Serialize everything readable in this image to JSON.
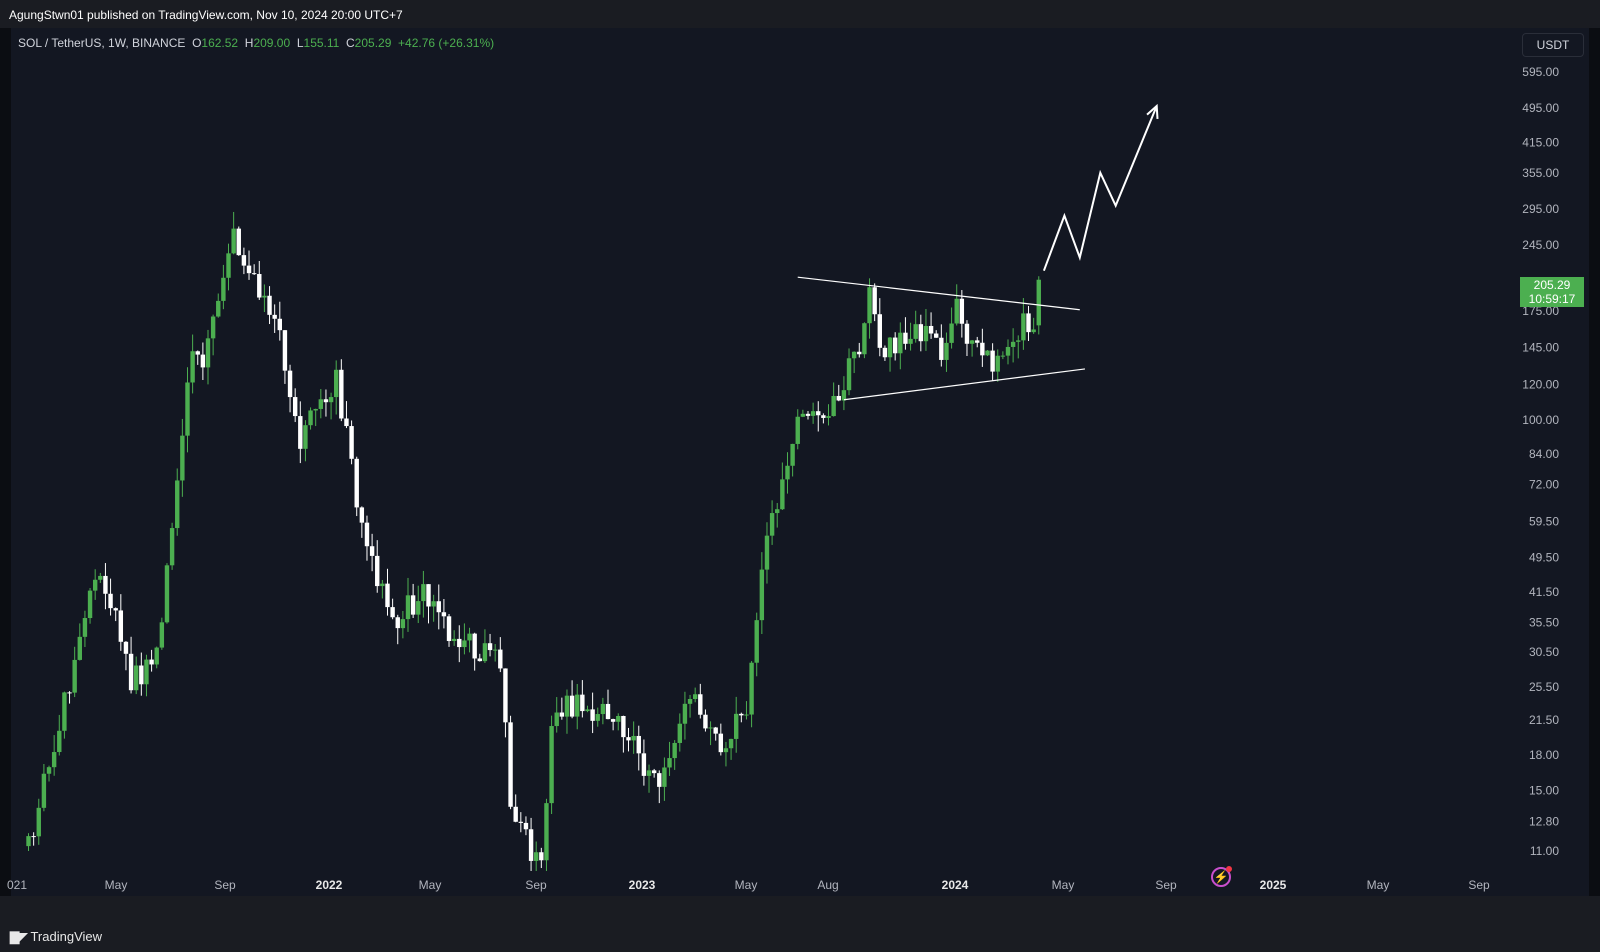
{
  "header": {
    "published": "AgungStwn01 published on TradingView.com, Nov 10, 2024 20:00 UTC+7"
  },
  "legend": {
    "symbol": "SOL / TetherUS, 1W, BINANCE",
    "o_label": "O",
    "o": "162.52",
    "h_label": "H",
    "h": "209.00",
    "l_label": "L",
    "l": "155.11",
    "c_label": "C",
    "c": "205.29",
    "change": "+42.76 (+26.31%)"
  },
  "currency_button": "USDT",
  "last_price": {
    "price": "205.29",
    "countdown": "10:59:17"
  },
  "brand": {
    "name": "TradingView"
  },
  "icons": {
    "brand_logo": "tradingview-logo-icon",
    "alert": "lightning-alert-icon"
  },
  "colors": {
    "up": "#4caf50",
    "down": "#ffffff",
    "background": "#131722",
    "annotation": "#ffffff"
  },
  "chart_data": {
    "type": "candlestick",
    "interval": "1W",
    "y_scale": "log",
    "y_ticks": [
      "595.00",
      "495.00",
      "415.00",
      "355.00",
      "295.00",
      "245.00",
      "175.00",
      "145.00",
      "120.00",
      "100.00",
      "84.00",
      "72.00",
      "59.50",
      "49.50",
      "41.50",
      "35.50",
      "30.50",
      "25.50",
      "21.50",
      "18.00",
      "15.00",
      "12.80",
      "11.00"
    ],
    "x_ticks": [
      "021",
      "May",
      "Sep",
      "2022",
      "May",
      "Sep",
      "2023",
      "May",
      "Aug",
      "2024",
      "May",
      "Sep",
      "2025",
      "May",
      "Sep"
    ],
    "anchors": [
      {
        "x": "2021-02-01",
        "close": 11.5
      },
      {
        "x": "2021-03-15",
        "close": 21
      },
      {
        "x": "2021-05-10",
        "close": 48
      },
      {
        "x": "2021-06-21",
        "close": 26
      },
      {
        "x": "2021-07-26",
        "close": 30
      },
      {
        "x": "2021-08-23",
        "close": 72
      },
      {
        "x": "2021-09-13",
        "close": 150
      },
      {
        "x": "2021-09-27",
        "close": 130
      },
      {
        "x": "2021-11-08",
        "close": 250
      },
      {
        "x": "2021-12-20",
        "close": 180
      },
      {
        "x": "2022-01-10",
        "close": 150
      },
      {
        "x": "2022-02-07",
        "close": 90
      },
      {
        "x": "2022-03-28",
        "close": 125
      },
      {
        "x": "2022-05-09",
        "close": 50
      },
      {
        "x": "2022-06-20",
        "close": 36
      },
      {
        "x": "2022-07-25",
        "close": 42
      },
      {
        "x": "2022-09-05",
        "close": 32
      },
      {
        "x": "2022-11-07",
        "close": 30
      },
      {
        "x": "2022-11-21",
        "close": 14
      },
      {
        "x": "2023-01-02",
        "close": 10
      },
      {
        "x": "2023-01-16",
        "close": 22
      },
      {
        "x": "2023-02-13",
        "close": 23
      },
      {
        "x": "2023-04-17",
        "close": 22
      },
      {
        "x": "2023-06-12",
        "close": 15
      },
      {
        "x": "2023-07-24",
        "close": 25
      },
      {
        "x": "2023-09-04",
        "close": 19
      },
      {
        "x": "2023-10-09",
        "close": 22
      },
      {
        "x": "2023-11-06",
        "close": 55
      },
      {
        "x": "2023-12-25",
        "close": 110
      },
      {
        "x": "2024-01-22",
        "close": 96
      },
      {
        "x": "2024-03-11",
        "close": 145
      },
      {
        "x": "2024-03-25",
        "close": 190
      },
      {
        "x": "2024-04-15",
        "close": 140
      },
      {
        "x": "2024-05-27",
        "close": 165
      },
      {
        "x": "2024-07-01",
        "close": 140
      },
      {
        "x": "2024-07-22",
        "close": 180
      },
      {
        "x": "2024-08-05",
        "close": 145
      },
      {
        "x": "2024-09-09",
        "close": 135
      },
      {
        "x": "2024-10-21",
        "close": 165
      },
      {
        "x": "2024-11-04",
        "close": 162.52
      }
    ],
    "last_candle": {
      "x": "2024-11-11",
      "open": 162.52,
      "high": 209.0,
      "low": 155.11,
      "close": 205.29
    },
    "triangle": {
      "upper": [
        {
          "x": "2023-12-18",
          "y": 208
        },
        {
          "x": "2025-01-06",
          "y": 176
        }
      ],
      "lower": [
        {
          "x": "2024-02-19",
          "y": 111
        },
        {
          "x": "2025-01-13",
          "y": 130
        }
      ]
    },
    "projection_path": [
      {
        "x": "2024-11-18",
        "y": 215
      },
      {
        "x": "2024-12-16",
        "y": 285
      },
      {
        "x": "2025-01-06",
        "y": 230
      },
      {
        "x": "2025-02-03",
        "y": 355
      },
      {
        "x": "2025-02-24",
        "y": 300
      },
      {
        "x": "2025-04-21",
        "y": 500
      }
    ]
  }
}
